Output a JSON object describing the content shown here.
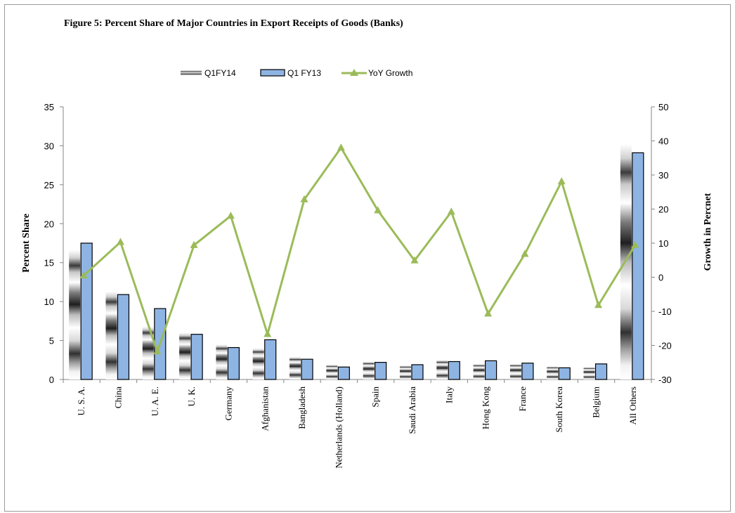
{
  "chart_data": {
    "type": "bar",
    "title": "Figure 5: Percent Share of Major Countries in Export Receipts of Goods  (Banks)",
    "ylabel": "Percent Share",
    "y2label": "Growth in Percnet",
    "ylim": [
      0,
      35
    ],
    "y2lim": [
      -30,
      50
    ],
    "yticks": [
      0,
      5,
      10,
      15,
      20,
      25,
      30,
      35
    ],
    "y2ticks": [
      -30,
      -20,
      -10,
      0,
      10,
      20,
      30,
      40,
      50
    ],
    "grid": false,
    "legend_position": "top",
    "categories": [
      "U. S. A.",
      "China",
      "U. A. E.",
      "U. K.",
      "Germany",
      "Afghanistan",
      "Bangladesh",
      "Netherlands (Holland)",
      "Spain",
      "Saudi Arabia",
      "Italy",
      "Hong Kong",
      "France",
      "South Korea",
      "Belgium",
      "All Others"
    ],
    "series": [
      {
        "name": "Q1FY14",
        "kind": "bar",
        "values": [
          16.6,
          11.3,
          6.8,
          6.0,
          4.5,
          4.0,
          2.9,
          1.9,
          2.3,
          1.8,
          2.5,
          2.0,
          2.0,
          1.7,
          1.6,
          30.2
        ]
      },
      {
        "name": "Q1 FY13",
        "kind": "bar",
        "values": [
          17.5,
          10.9,
          9.1,
          5.8,
          4.1,
          5.1,
          2.6,
          1.6,
          2.2,
          1.9,
          2.3,
          2.4,
          2.1,
          1.5,
          2.0,
          29.1
        ]
      },
      {
        "name": "YoY Growth",
        "kind": "line",
        "axis": "secondary",
        "values": [
          0.5,
          10.3,
          -21.8,
          9.4,
          18.0,
          -16.7,
          22.8,
          38.0,
          19.6,
          4.9,
          19.2,
          -10.7,
          6.8,
          28.1,
          -8.2,
          9.4
        ]
      }
    ],
    "colors": {
      "q1fy13": "#8EB4E3",
      "yoy": "#9BBB59",
      "axis": "#868686"
    }
  }
}
